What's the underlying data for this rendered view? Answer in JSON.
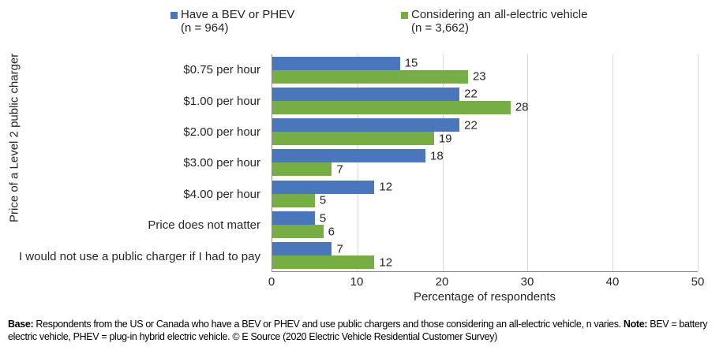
{
  "legend": [
    {
      "label": "Have a BEV or PHEV",
      "n": "(n = 964)",
      "color": "#4a77bc"
    },
    {
      "label": "Considering an all-electric vehicle",
      "n": "(n = 3,662)",
      "color": "#76ad45"
    }
  ],
  "chart_data": {
    "type": "bar",
    "orientation": "horizontal",
    "categories": [
      "$0.75 per hour",
      "$1.00 per hour",
      "$2.00 per hour",
      "$3.00 per hour",
      "$4.00 per hour",
      "Price does not matter",
      "I would not use a public charger if I had to pay"
    ],
    "series": [
      {
        "name": "Have a BEV or PHEV (n = 964)",
        "color": "#4a77bc",
        "values": [
          15,
          22,
          22,
          18,
          12,
          5,
          7
        ]
      },
      {
        "name": "Considering an all-electric vehicle (n = 3,662)",
        "color": "#76ad45",
        "values": [
          23,
          28,
          19,
          7,
          5,
          6,
          12
        ]
      }
    ],
    "xlabel": "Percentage of respondents",
    "ylabel": "Price of a Level 2 public charger",
    "xlim": [
      0,
      50
    ],
    "xticks": [
      0,
      10,
      20,
      30,
      40,
      50
    ],
    "grid": true,
    "legend_position": "top",
    "data_labels": true
  },
  "footer": {
    "base_label": "Base:",
    "base_text": " Respondents from the US or Canada who have a BEV or PHEV and use public chargers and those considering an all-electric vehicle, n varies. ",
    "note_label": "Note:",
    "note_text": " BEV = battery electric vehicle, PHEV = plug-in hybrid electric vehicle. © E Source (2020 Electric Vehicle Residential Customer Survey)"
  }
}
